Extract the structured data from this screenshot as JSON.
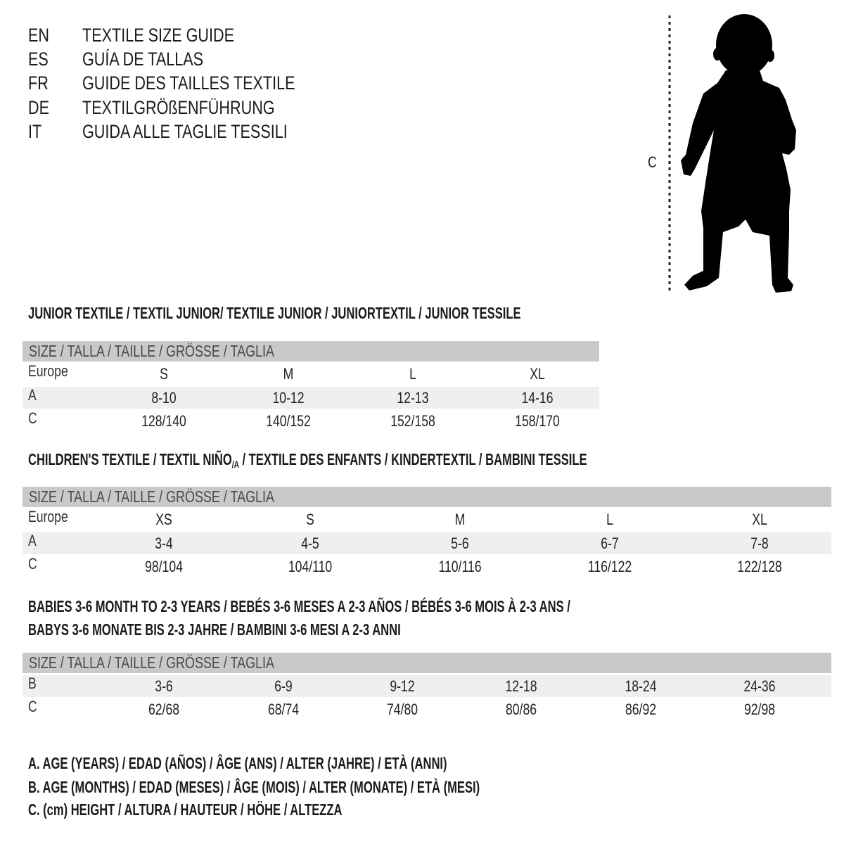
{
  "header": {
    "languages": [
      {
        "code": "EN",
        "title": "TEXTILE SIZE GUIDE"
      },
      {
        "code": "ES",
        "title": "GUÍA DE TALLAS"
      },
      {
        "code": "FR",
        "title": "GUIDE DES TAILLES TEXTILE"
      },
      {
        "code": "DE",
        "title": "TEXTILGRÖßENFÜHRUNG"
      },
      {
        "code": "IT",
        "title": "GUIDA ALLE TAGLIE TESSILI"
      }
    ]
  },
  "figure": {
    "icon": "child-silhouette",
    "measure_label": "C"
  },
  "junior": {
    "title": "JUNIOR TEXTILE / TEXTIL JUNIOR/ TEXTILE JUNIOR / JUNIORTEXTIL / JUNIOR TESSILE",
    "header": "SIZE / TALLA / TAILLE / GRÖSSE / TAGLIA",
    "rows": [
      {
        "label": "Europe",
        "values": [
          "S",
          "M",
          "L",
          "XL"
        ]
      },
      {
        "label": "A",
        "values": [
          "8-10",
          "10-12",
          "12-13",
          "14-16"
        ]
      },
      {
        "label": "C",
        "values": [
          "128/140",
          "140/152",
          "152/158",
          "158/170"
        ]
      }
    ]
  },
  "children": {
    "title_main": "CHILDREN'S TEXTILE / TEXTIL NIÑO",
    "title_sub": "/A",
    "title_rest": " / TEXTILE DES ENFANTS / KINDERTEXTIL / BAMBINI TESSILE",
    "header": "SIZE / TALLA / TAILLE / GRÖSSE / TAGLIA",
    "rows": [
      {
        "label": "Europe",
        "values": [
          "XS",
          "S",
          "M",
          "L",
          "XL"
        ]
      },
      {
        "label": "A",
        "values": [
          "3-4",
          "4-5",
          "5-6",
          "6-7",
          "7-8"
        ]
      },
      {
        "label": "C",
        "values": [
          "98/104",
          "104/110",
          "110/116",
          "116/122",
          "122/128"
        ]
      }
    ]
  },
  "babies": {
    "title_line1": "BABIES 3-6 MONTH TO 2-3 YEARS / BEBÉS 3-6 MESES A 2-3 AÑOS / BÉBÉS 3-6 MOIS À 2-3 ANS /",
    "title_line2": "BABYS 3-6 MONATE BIS 2-3 JAHRE / BAMBINI 3-6 MESI A 2-3 ANNI",
    "header": "SIZE / TALLA / TAILLE / GRÖSSE / TAGLIA",
    "rows": [
      {
        "label": "B",
        "values": [
          "3-6",
          "6-9",
          "9-12",
          "12-18",
          "18-24",
          "24-36"
        ]
      },
      {
        "label": "C",
        "values": [
          "62/68",
          "68/74",
          "74/80",
          "80/86",
          "86/92",
          "92/98"
        ]
      }
    ]
  },
  "legend": [
    "A. AGE (YEARS) / EDAD (AÑOS) / ÂGE (ANS) / ALTER (JAHRE) / ETÀ (ANNI)",
    "B. AGE (MONTHS) / EDAD (MESES) / ÂGE (MOIS) / ALTER (MONATE) / ETÀ (MESI)",
    "C. (cm) HEIGHT / ALTURA / HAUTEUR / HÖHE / ALTEZZA"
  ],
  "colors": {
    "header_bar": "#c9c9c9",
    "stripe": "#efefef",
    "text": "#1b1b1b"
  }
}
